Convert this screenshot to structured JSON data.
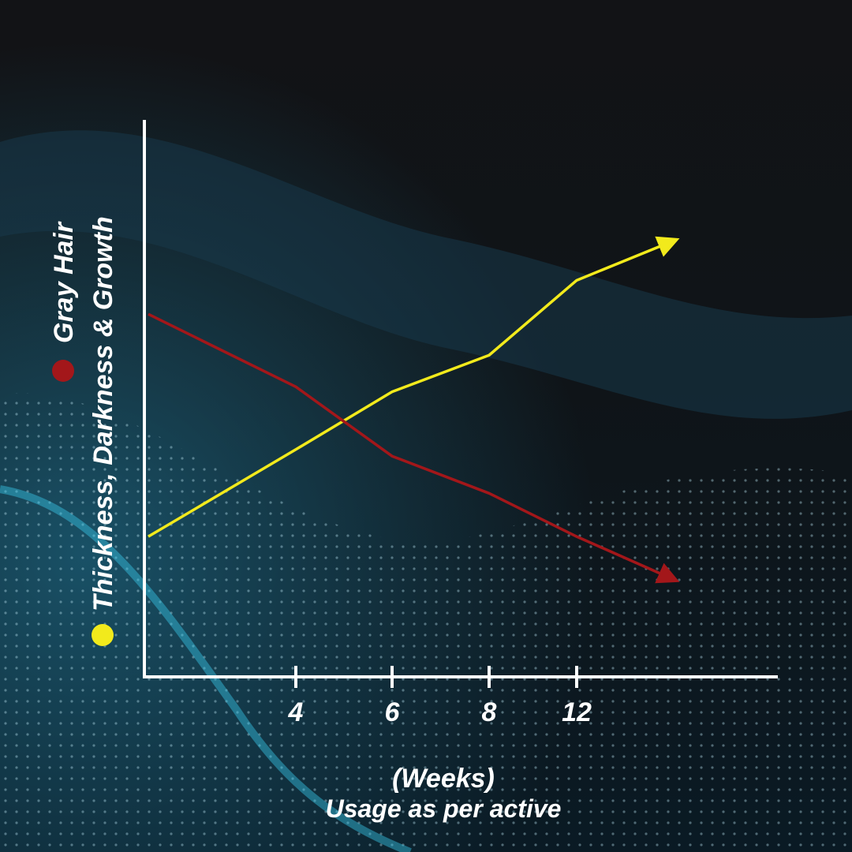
{
  "chart_data": {
    "type": "line",
    "categories": [
      null,
      "4",
      "6",
      "8",
      "12",
      null
    ],
    "series": [
      {
        "name": "Thickness, Darkness & Growth",
        "color": "#f2ea1c",
        "values": [
          25.3,
          41,
          51.4,
          58,
          71.5,
          78.7
        ]
      },
      {
        "name": "Gray Hair",
        "color": "#a3171a",
        "values": [
          65.4,
          52.3,
          39.8,
          33.1,
          25.3,
          17.5
        ]
      }
    ],
    "ylim": [
      0,
      100
    ],
    "x_label": [
      "(Weeks)",
      "Usage as per active"
    ],
    "arrow_ends": true
  }
}
